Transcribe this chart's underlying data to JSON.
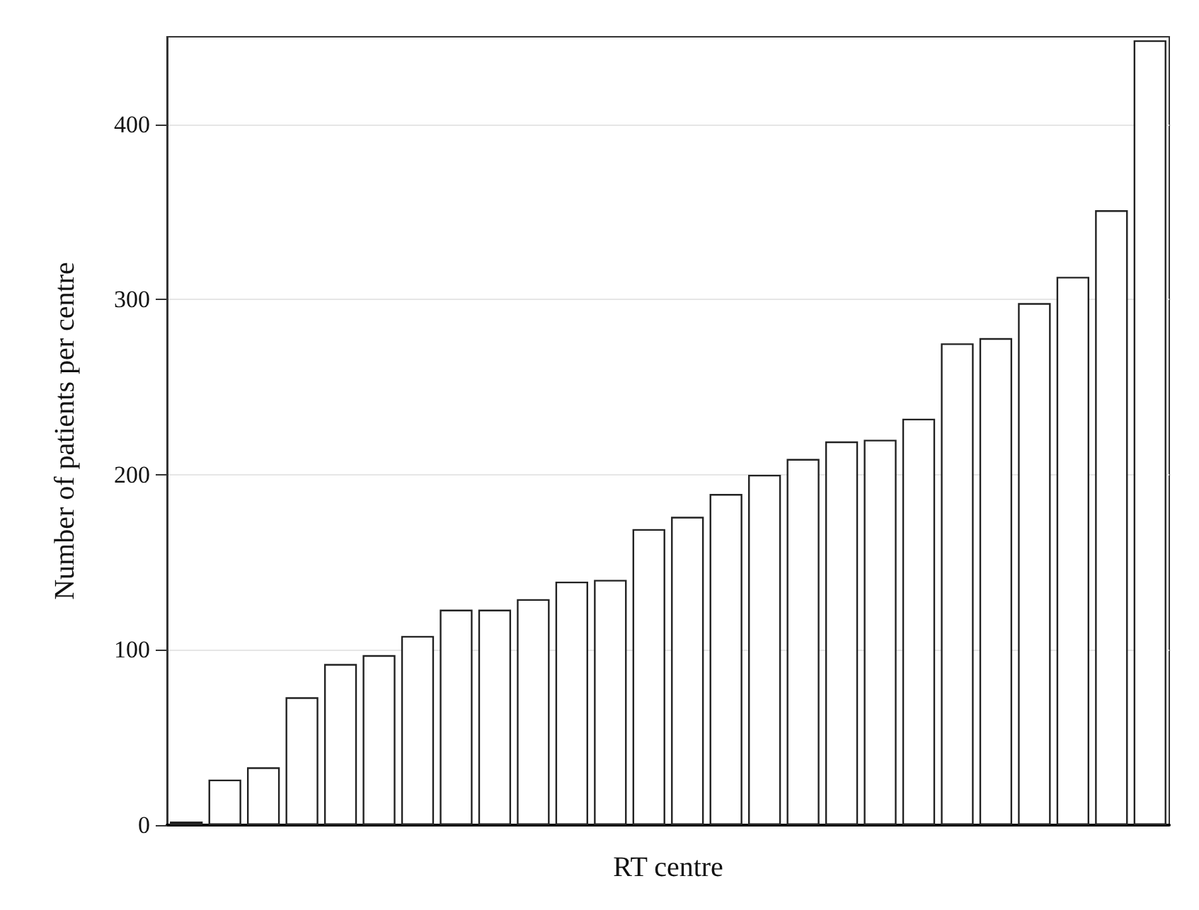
{
  "chart_data": {
    "type": "bar",
    "xlabel": "RT centre",
    "ylabel": "Number of patients per centre",
    "categories": [
      null,
      null,
      null,
      null,
      null,
      null,
      null,
      null,
      null,
      null,
      null,
      null,
      null,
      null,
      null,
      null,
      null,
      null,
      null,
      null,
      null,
      null,
      null,
      null,
      null,
      null
    ],
    "values": [
      2,
      26,
      33,
      73,
      92,
      97,
      108,
      123,
      123,
      129,
      139,
      140,
      169,
      176,
      189,
      200,
      209,
      219,
      220,
      232,
      275,
      278,
      298,
      313,
      351,
      448
    ],
    "color": "#ffffff",
    "ylim": [
      0,
      450
    ],
    "yticks": [
      0,
      100,
      200,
      300,
      400
    ],
    "grid": "y"
  }
}
